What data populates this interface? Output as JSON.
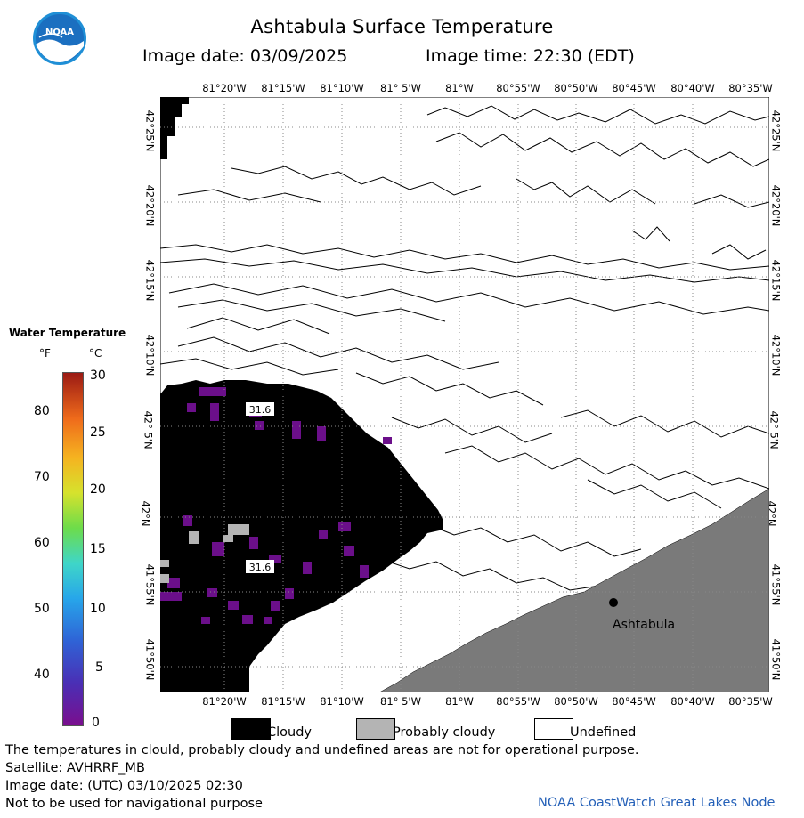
{
  "header": {
    "title": "Ashtabula Surface Temperature",
    "image_date": "Image date: 03/09/2025",
    "image_time": "Image time: 22:30 (EDT)",
    "logo_text": "NOAA"
  },
  "map": {
    "lon_labels": [
      "81°20'W",
      "81°15'W",
      "81°10'W",
      "81° 5'W",
      "81°W",
      "80°55'W",
      "80°50'W",
      "80°45'W",
      "80°40'W",
      "80°35'W"
    ],
    "lat_labels": [
      "42°25'N",
      "42°20'N",
      "42°15'N",
      "42°10'N",
      "42° 5'N",
      "42°N",
      "41°55'N",
      "41°50'N"
    ],
    "place": {
      "name": "Ashtabula"
    },
    "temp_labels": [
      "31.6",
      "31.6"
    ],
    "colors": {
      "cloudy": "#000000",
      "probably_cloudy": "#b4b4b4",
      "land": "#7a7a7a",
      "cold_water": "#6b0f8a",
      "grid": "#888888"
    }
  },
  "legend": {
    "title": "Water Temperature",
    "f_header": "°F",
    "c_header": "°C",
    "f_ticks": [
      "80",
      "70",
      "60",
      "50",
      "40"
    ],
    "c_ticks": [
      "30",
      "25",
      "20",
      "15",
      "10",
      "5",
      "0"
    ]
  },
  "key": {
    "cloudy": "Cloudy",
    "probably_cloudy": "Probably cloudy",
    "undefined": "Undefined"
  },
  "footer": {
    "disclaimer": "The temperatures in clould, probably cloudy and undefined areas are not for operational purpose.",
    "satellite": "Satellite: AVHRRF_MB",
    "utc_date": "Image date: (UTC) 03/10/2025  02:30",
    "nav_warning": "Not to be used for navigational purpose",
    "credit": "NOAA CoastWatch Great Lakes Node"
  }
}
